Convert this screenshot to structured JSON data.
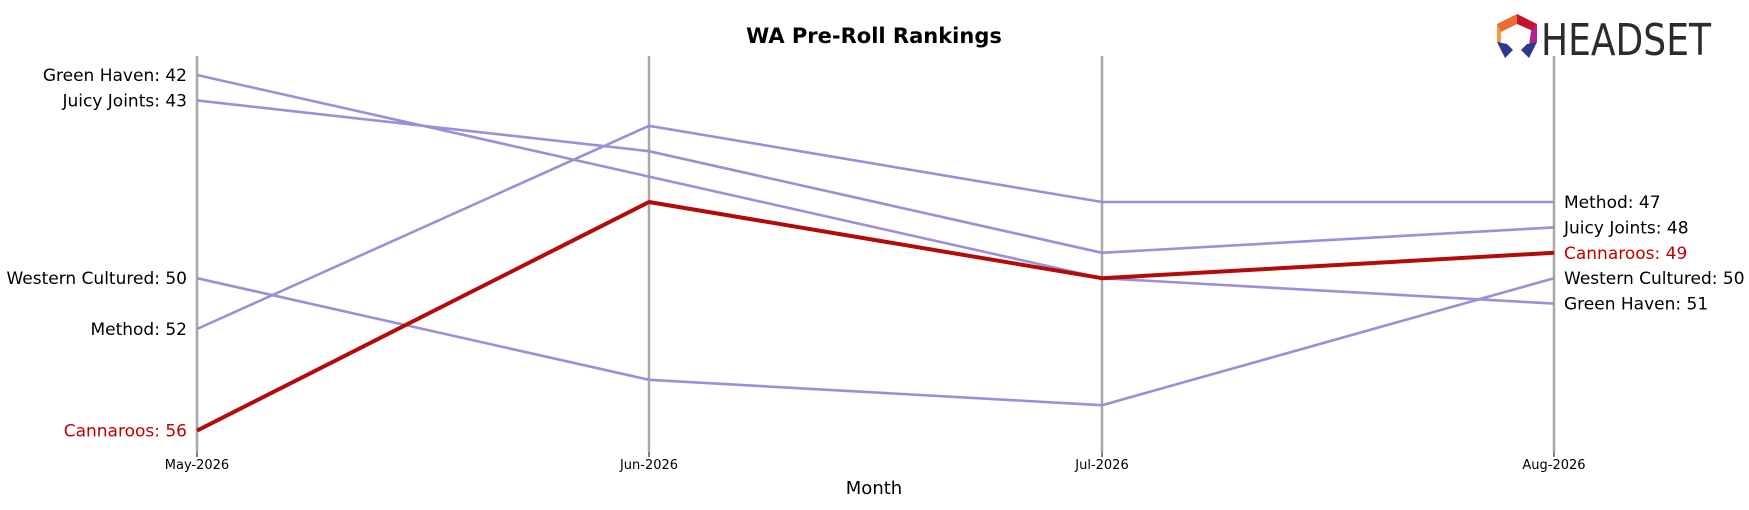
{
  "chart_data": {
    "type": "line",
    "title": "WA Pre-Roll Rankings",
    "xlabel": "Month",
    "ylabel": "",
    "categories": [
      "May-2026",
      "Jun-2026",
      "Jul-2026",
      "Aug-2026"
    ],
    "y_axis": "rank",
    "ylim": [
      41.5,
      57
    ],
    "y_inverted": true,
    "grid": false,
    "highlight_series": "Cannaroos",
    "colors": {
      "default_line": "#9b8fd8",
      "highlight_line": "#b30a0a",
      "highlight_label": "#c00000",
      "month_line": "#a8a8a8",
      "label": "#000000"
    },
    "series": [
      {
        "name": "Green Haven",
        "values": [
          42,
          46,
          50,
          51
        ]
      },
      {
        "name": "Juicy Joints",
        "values": [
          43,
          45,
          49,
          48
        ]
      },
      {
        "name": "Western Cultured",
        "values": [
          50,
          54,
          55,
          50
        ]
      },
      {
        "name": "Method",
        "values": [
          52,
          44,
          47,
          47
        ]
      },
      {
        "name": "Cannaroos",
        "values": [
          56,
          47,
          50,
          49
        ]
      }
    ]
  },
  "logo": {
    "text": "HEADSET",
    "colors": {
      "text": "#2b2b2b",
      "red": "#c3142d",
      "magenta": "#b5208f",
      "orange": "#ee6b2f",
      "blue": "#2b3a8f"
    }
  }
}
